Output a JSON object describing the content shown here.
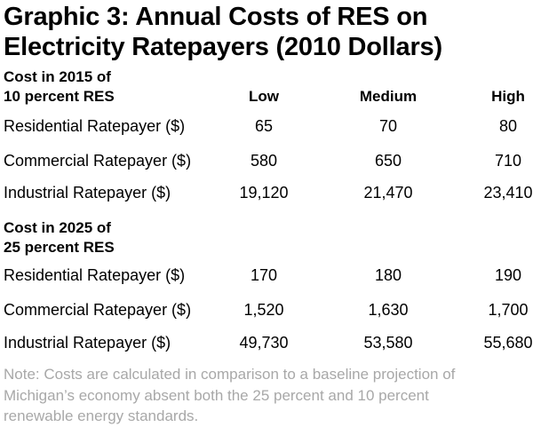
{
  "title_line1": "Graphic 3: Annual Costs of RES on",
  "title_line2": "Electricity Ratepayers (2010 Dollars)",
  "columns": [
    "Low",
    "Medium",
    "High"
  ],
  "sections": [
    {
      "heading_line1": "Cost in 2015 of",
      "heading_line2": "10 percent RES",
      "rows": [
        {
          "label": "Residential Ratepayer ($)",
          "values": [
            "65",
            "70",
            "80"
          ]
        },
        {
          "label": "Commercial Ratepayer ($)",
          "values": [
            "580",
            "650",
            "710"
          ]
        },
        {
          "label": "Industrial Ratepayer ($)",
          "values": [
            "19,120",
            "21,470",
            "23,410"
          ]
        }
      ]
    },
    {
      "heading_line1": "Cost in 2025 of",
      "heading_line2": "25 percent RES",
      "rows": [
        {
          "label": "Residential Ratepayer ($)",
          "values": [
            "170",
            "180",
            "190"
          ]
        },
        {
          "label": "Commercial Ratepayer ($)",
          "values": [
            "1,520",
            "1,630",
            "1,700"
          ]
        },
        {
          "label": "Industrial Ratepayer ($)",
          "values": [
            "49,730",
            "53,580",
            "55,680"
          ]
        }
      ]
    }
  ],
  "note": "Note: Costs are calculated in comparison to a baseline projection of Michigan’s economy absent both the 25 percent and 10 percent renewable energy standards.",
  "colors": {
    "text": "#000000",
    "note": "#a8a8a8"
  }
}
